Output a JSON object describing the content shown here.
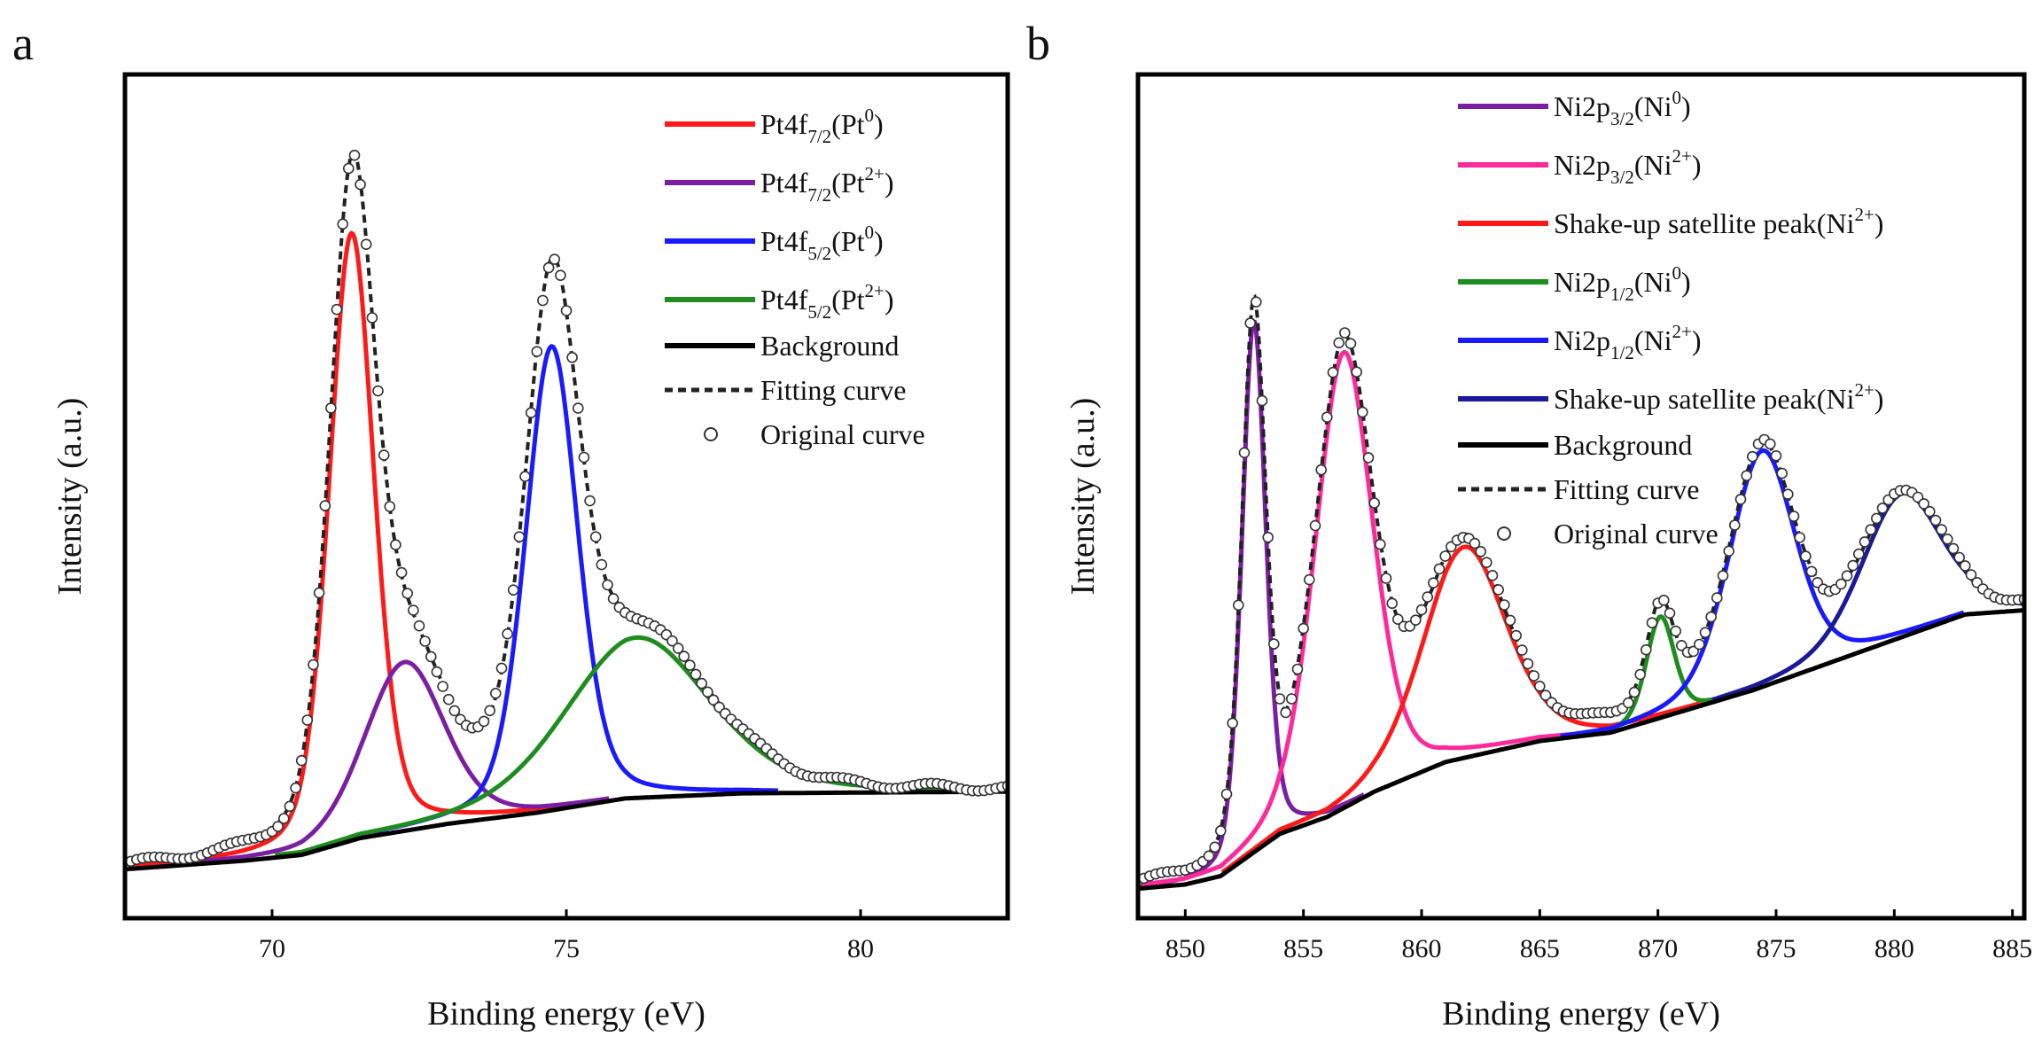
{
  "panels": {
    "a": {
      "label": "a"
    },
    "b": {
      "label": "b"
    }
  },
  "chart_data": [
    {
      "id": "a",
      "type": "line",
      "title": "",
      "xlabel": "Binding energy (eV)",
      "ylabel": "Intensity (a.u.)",
      "xlim": [
        67.5,
        82.5
      ],
      "ylim": [
        0,
        1.0
      ],
      "xticks": [
        70,
        75,
        80
      ],
      "grid": false,
      "legend_position": "top-right",
      "background": {
        "name": "Background",
        "color": "#000000",
        "points": [
          [
            67.5,
            0.058
          ],
          [
            69.5,
            0.068
          ],
          [
            70.5,
            0.075
          ],
          [
            71.5,
            0.095
          ],
          [
            73,
            0.112
          ],
          [
            74.5,
            0.125
          ],
          [
            76,
            0.142
          ],
          [
            78,
            0.148
          ],
          [
            82.5,
            0.15
          ]
        ]
      },
      "peaks": [
        {
          "name": "Pt4f",
          "sub": "7/2",
          "state": "(Pt",
          "sup": "0",
          "close": ")",
          "color": "#ff1a1a",
          "center": 71.35,
          "height": 0.72,
          "fwhm": 0.9
        },
        {
          "name": "Pt4f",
          "sub": "7/2",
          "state": "(Pt",
          "sup": "2+",
          "close": ")",
          "color": "#7b1fa2",
          "center": 72.25,
          "height": 0.2,
          "fwhm": 1.6
        },
        {
          "name": "Pt4f",
          "sub": "5/2",
          "state": "(Pt",
          "sup": "0",
          "close": ")",
          "color": "#1a1aff",
          "center": 74.75,
          "height": 0.55,
          "fwhm": 1.05
        },
        {
          "name": "Pt4f",
          "sub": "5/2",
          "state": "(Pt",
          "sup": "2+",
          "close": ")",
          "color": "#1e8c1e",
          "center": 76.2,
          "height": 0.19,
          "fwhm": 2.9
        }
      ],
      "legend_extra": [
        "Background",
        "Fitting curve",
        "Original curve"
      ]
    },
    {
      "id": "b",
      "type": "line",
      "title": "",
      "xlabel": "Binding energy (eV)",
      "ylabel": "Intensity (a.u.)",
      "xlim": [
        848,
        885.5
      ],
      "ylim": [
        0,
        1.0
      ],
      "xticks": [
        850,
        855,
        860,
        865,
        870,
        875,
        880,
        885
      ],
      "grid": false,
      "legend_position": "top-right",
      "background": {
        "name": "Background",
        "color": "#000000",
        "points": [
          [
            848,
            0.035
          ],
          [
            850,
            0.04
          ],
          [
            851.5,
            0.05
          ],
          [
            852.5,
            0.07
          ],
          [
            854,
            0.1
          ],
          [
            856,
            0.12
          ],
          [
            858,
            0.15
          ],
          [
            861,
            0.185
          ],
          [
            865,
            0.21
          ],
          [
            868,
            0.22
          ],
          [
            871,
            0.245
          ],
          [
            874,
            0.27
          ],
          [
            877,
            0.3
          ],
          [
            880,
            0.33
          ],
          [
            883,
            0.36
          ],
          [
            885.5,
            0.365
          ]
        ]
      },
      "peaks": [
        {
          "name": "Ni2p",
          "sub": "3/2",
          "state": "(Ni",
          "sup": "0",
          "close": ")",
          "color": "#7b1fa2",
          "center": 852.9,
          "height": 0.63,
          "fwhm": 1.2
        },
        {
          "name": "Ni2p",
          "sub": "3/2",
          "state": "(Ni",
          "sup": "2+",
          "close": ")",
          "color": "#ff2a9a",
          "center": 856.7,
          "height": 0.54,
          "fwhm": 2.9
        },
        {
          "name": "Shake-up satellite peak",
          "sub": "",
          "state": "(Ni",
          "sup": "2+",
          "close": ")",
          "color": "#ff1a1a",
          "center": 861.8,
          "height": 0.25,
          "fwhm": 4.2
        },
        {
          "name": "Ni2p",
          "sub": "1/2",
          "state": "(Ni",
          "sup": "0",
          "close": ")",
          "color": "#1e8c1e",
          "center": 870.1,
          "height": 0.12,
          "fwhm": 1.4
        },
        {
          "name": "Ni2p",
          "sub": "1/2",
          "state": "(Ni",
          "sup": "2+",
          "close": ")",
          "color": "#1a1aff",
          "center": 874.4,
          "height": 0.28,
          "fwhm": 3.3
        },
        {
          "name": "Shake-up satellite peak",
          "sub": "",
          "state": "(Ni",
          "sup": "2+",
          "close": ")",
          "color": "#1a1a99",
          "center": 880.3,
          "height": 0.17,
          "fwhm": 4.0
        }
      ],
      "legend_extra": [
        "Background",
        "Fitting curve",
        "Original curve"
      ]
    }
  ]
}
